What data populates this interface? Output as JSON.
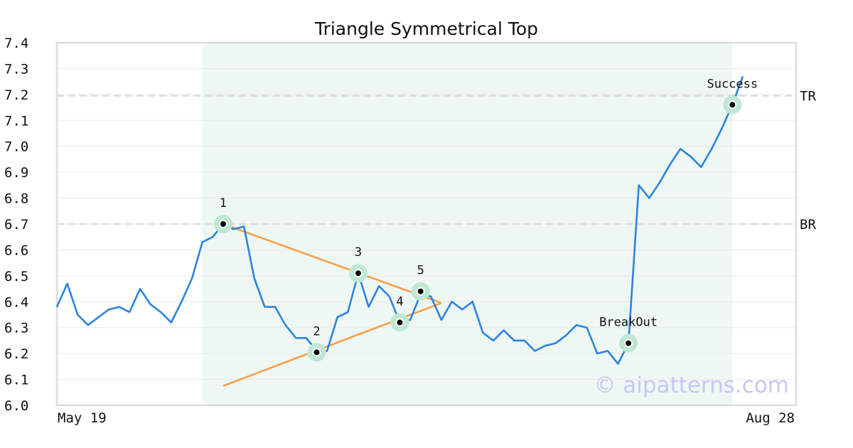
{
  "chart_data": {
    "type": "line",
    "title": "Triangle Symmetrical Top",
    "x_start_label": "May 19",
    "x_end_label": "Aug 28",
    "ylim": [
      6.0,
      7.4
    ],
    "yticks": [
      "6.0",
      "6.1",
      "6.2",
      "6.3",
      "6.4",
      "6.5",
      "6.6",
      "6.7",
      "6.8",
      "6.9",
      "7.0",
      "7.1",
      "7.2",
      "7.3",
      "7.4"
    ],
    "grid": true,
    "colors": {
      "price": "#2b84de",
      "trendline": "#f5a04a",
      "band": "#eef7f3",
      "marker_halo": "#bfe8d3",
      "ref_line": "#dddddd"
    },
    "series": [
      {
        "type": "price",
        "values": [
          6.38,
          6.47,
          6.35,
          6.31,
          6.34,
          6.37,
          6.38,
          6.36,
          6.45,
          6.39,
          6.36,
          6.32,
          6.4,
          6.49,
          6.63,
          6.65,
          6.7,
          6.68,
          6.69,
          6.49,
          6.38,
          6.38,
          6.31,
          6.26,
          6.26,
          6.21,
          6.21,
          6.34,
          6.36,
          6.51,
          6.38,
          6.46,
          6.42,
          6.32,
          6.33,
          6.43,
          6.42,
          6.33,
          6.4,
          6.37,
          6.4,
          6.28,
          6.25,
          6.29,
          6.25,
          6.25,
          6.21,
          6.23,
          6.24,
          6.27,
          6.31,
          6.3,
          6.2,
          6.21,
          6.16,
          6.24,
          6.85,
          6.8,
          6.86,
          6.93,
          6.99,
          6.96,
          6.92,
          6.99,
          7.07,
          7.16,
          7.27
        ]
      }
    ],
    "highlight_band": {
      "from_index": 14,
      "to_index": 65
    },
    "reference_lines": [
      {
        "label": "TR",
        "value": 7.195
      },
      {
        "label": "BR",
        "value": 6.7
      }
    ],
    "trendlines": [
      {
        "from": [
          16,
          6.7
        ],
        "to": [
          37,
          6.395
        ]
      },
      {
        "from": [
          16,
          6.075
        ],
        "to": [
          37,
          6.395
        ]
      }
    ],
    "points": [
      {
        "label": "1",
        "index": 16,
        "value": 6.7
      },
      {
        "label": "2",
        "index": 25,
        "value": 6.205
      },
      {
        "label": "3",
        "index": 29,
        "value": 6.51
      },
      {
        "label": "4",
        "index": 33,
        "value": 6.32
      },
      {
        "label": "5",
        "index": 35,
        "value": 6.44
      },
      {
        "label": "BreakOut",
        "index": 55,
        "value": 6.24
      },
      {
        "label": "Success",
        "index": 65,
        "value": 7.16
      }
    ]
  },
  "watermark": "© aipatterns.com"
}
